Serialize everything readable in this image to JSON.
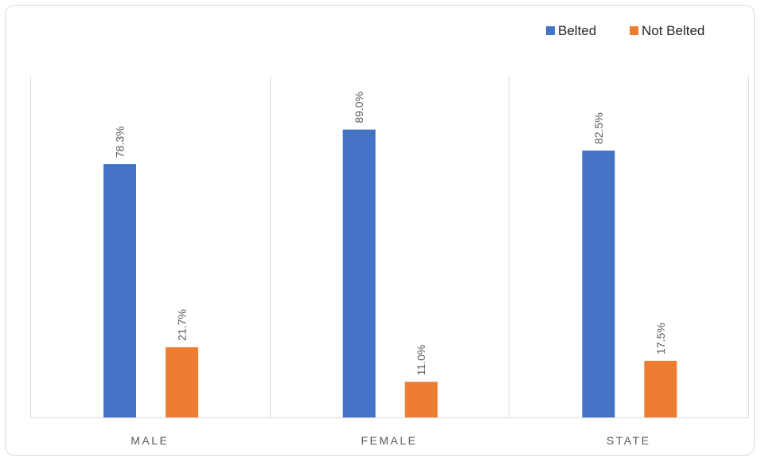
{
  "chart_data": {
    "type": "bar",
    "title": "",
    "xlabel": "",
    "ylabel": "",
    "categories": [
      "MALE",
      "FEMALE",
      "STATE"
    ],
    "series": [
      {
        "name": "Belted",
        "values": [
          78.3,
          89.0,
          82.5
        ],
        "labels": [
          "78.3%",
          "89.0%",
          "82.5%"
        ],
        "color": "#4472C4"
      },
      {
        "name": "Not Belted",
        "values": [
          21.7,
          11.0,
          17.5
        ],
        "labels": [
          "21.7%",
          "11.0%",
          "17.5%"
        ],
        "color": "#ED7D31"
      }
    ],
    "ylim": [
      0,
      100
    ],
    "legend_position": "top-right",
    "grid": false,
    "category_separators": true,
    "data_labels": "rotated-vertical"
  }
}
